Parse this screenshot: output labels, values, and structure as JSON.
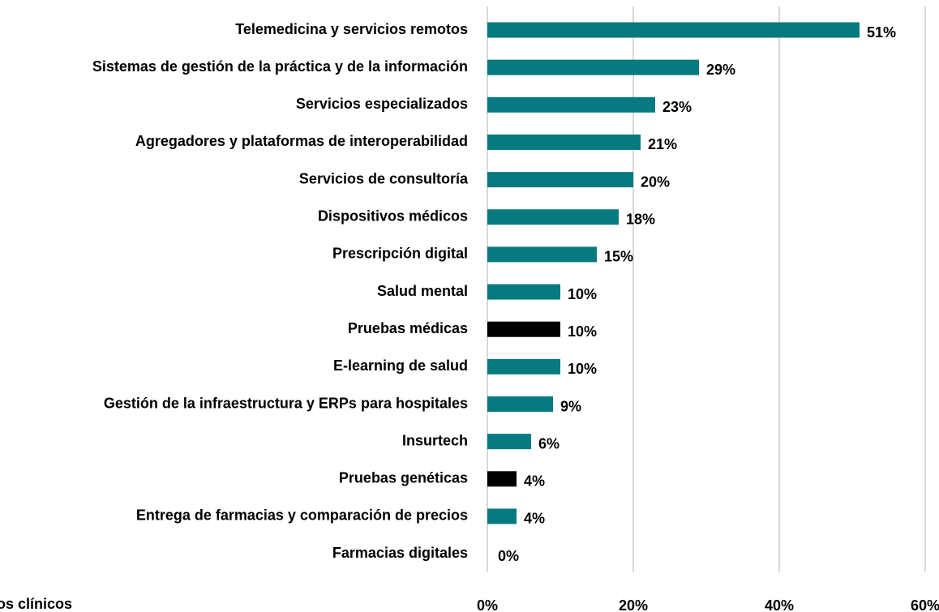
{
  "chart_data": {
    "type": "bar",
    "orientation": "horizontal",
    "categories": [
      "Telemedicina y servicios remotos",
      "Sistemas de gestión de la práctica y de la información",
      "Servicios especializados",
      "Agregadores y plataformas de interoperabilidad",
      "Servicios de consultoría",
      "Dispositivos médicos",
      "Prescripción digital",
      "Salud mental",
      "Pruebas médicas",
      "E-learning de salud",
      "Gestión de la infraestructura y ERPs para hospitales",
      "Insurtech",
      "Pruebas genéticas",
      "Entrega de farmacias y comparación de precios",
      "Farmacias digitales"
    ],
    "values": [
      51,
      29,
      23,
      21,
      20,
      18,
      15,
      10,
      10,
      10,
      9,
      6,
      4,
      4,
      0
    ],
    "value_labels": [
      "51%",
      "29%",
      "23%",
      "21%",
      "20%",
      "18%",
      "15%",
      "10%",
      "10%",
      "10%",
      "9%",
      "6%",
      "4%",
      "4%",
      "0%"
    ],
    "colors": [
      "#077a7f",
      "#077a7f",
      "#077a7f",
      "#077a7f",
      "#077a7f",
      "#077a7f",
      "#077a7f",
      "#077a7f",
      "#000000",
      "#077a7f",
      "#077a7f",
      "#077a7f",
      "#000000",
      "#077a7f",
      "#077a7f"
    ],
    "xlim": [
      0,
      60
    ],
    "xticks": [
      {
        "value": 0,
        "label": "0%"
      },
      {
        "value": 20,
        "label": "20%"
      },
      {
        "value": 40,
        "label": "40%"
      },
      {
        "value": 60,
        "label": "60%"
      }
    ],
    "grid": true,
    "annotation": "os clínicos"
  }
}
